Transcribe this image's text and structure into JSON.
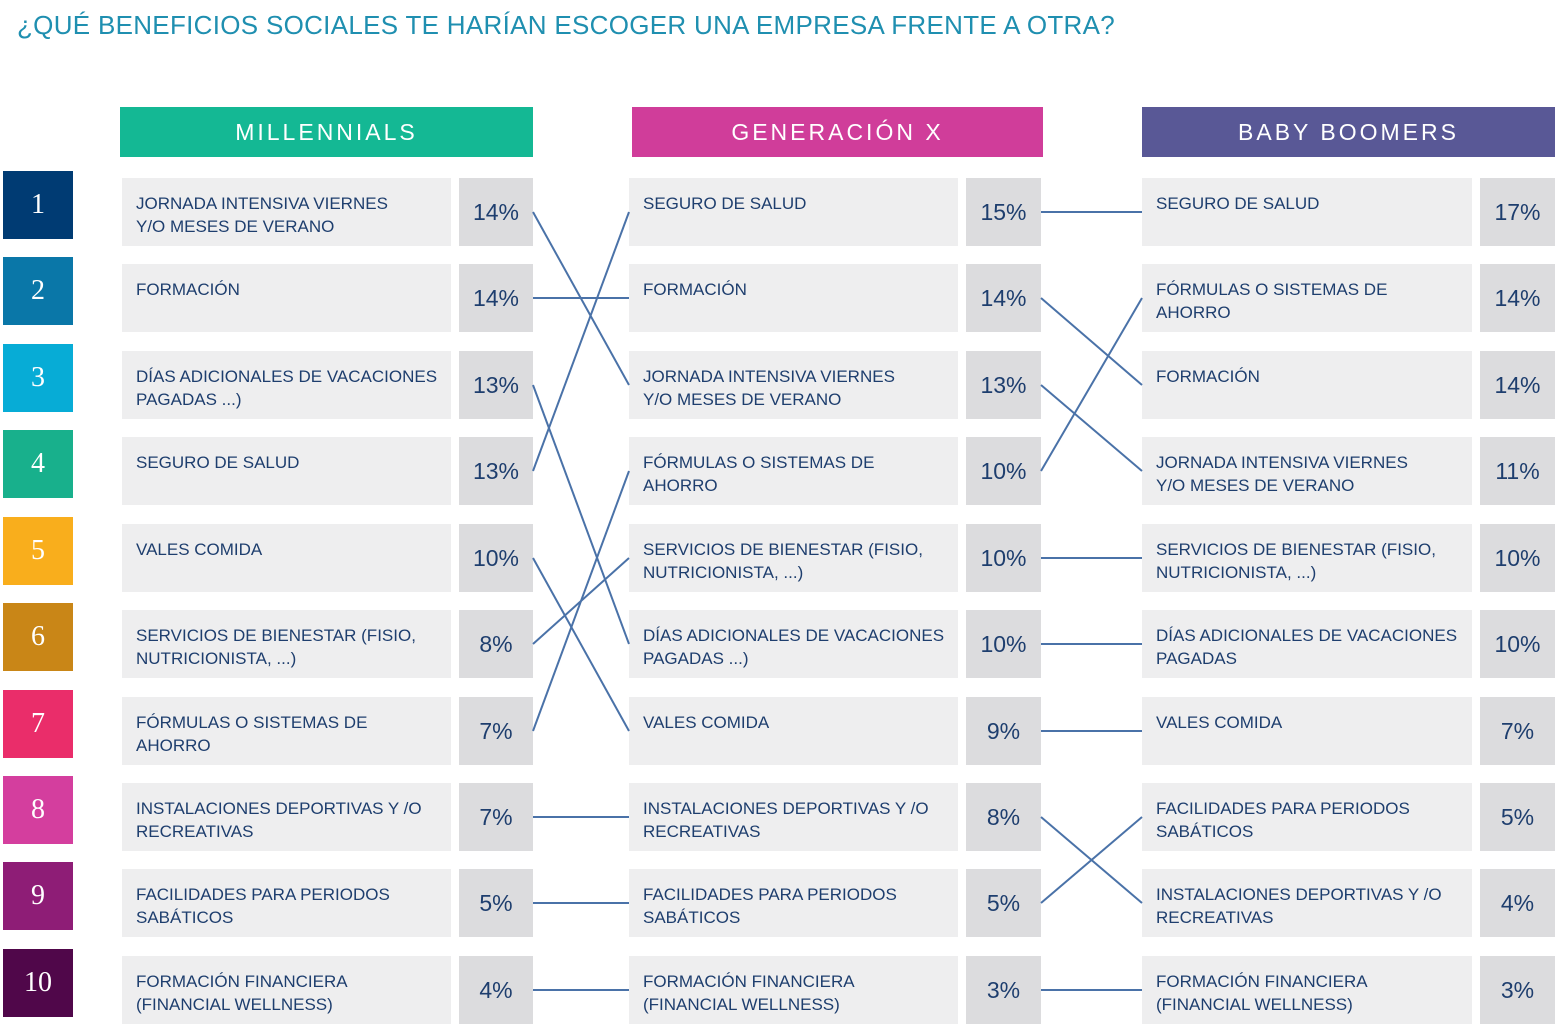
{
  "title": "¿QUÉ BENEFICIOS SOCIALES TE HARÍAN ESCOGER UNA EMPRESA FRENTE A OTRA?",
  "ranks": [
    "1",
    "2",
    "3",
    "4",
    "5",
    "6",
    "7",
    "8",
    "9",
    "10"
  ],
  "rank_colors": [
    "#003b73",
    "#0a77a8",
    "#07acd6",
    "#18b08c",
    "#f9ae1c",
    "#c98617",
    "#ea2d6a",
    "#d43e9e",
    "#8e1d76",
    "#50074a"
  ],
  "line_color": "#4a72a8",
  "chart_data": {
    "type": "table",
    "columns": [
      {
        "name": "MILLENNIALS",
        "color": "#14b894",
        "items": [
          {
            "label": "JORNADA INTENSIVA VIERNES\nY/O MESES DE VERANO",
            "value": "14%"
          },
          {
            "label": "FORMACIÓN",
            "value": "14%"
          },
          {
            "label": "DÍAS ADICIONALES DE VACACIONES\nPAGADAS ...)",
            "value": "13%"
          },
          {
            "label": "SEGURO DE SALUD",
            "value": "13%"
          },
          {
            "label": "VALES COMIDA",
            "value": "10%"
          },
          {
            "label": "SERVICIOS DE BIENESTAR (FISIO,\nNUTRICIONISTA, ...)",
            "value": "8%"
          },
          {
            "label": "FÓRMULAS O SISTEMAS DE\nAHORRO",
            "value": "7%"
          },
          {
            "label": "INSTALACIONES DEPORTIVAS Y /O\nRECREATIVAS",
            "value": "7%"
          },
          {
            "label": "FACILIDADES PARA PERIODOS\nSABÁTICOS",
            "value": "5%"
          },
          {
            "label": "FORMACIÓN FINANCIERA\n(FINANCIAL WELLNESS)",
            "value": "4%"
          }
        ]
      },
      {
        "name": "GENERACIÓN X",
        "color": "#d03d9a",
        "items": [
          {
            "label": "SEGURO DE SALUD",
            "value": "15%"
          },
          {
            "label": "FORMACIÓN",
            "value": "14%"
          },
          {
            "label": "JORNADA INTENSIVA VIERNES\nY/O MESES DE VERANO",
            "value": "13%"
          },
          {
            "label": "FÓRMULAS O SISTEMAS DE\nAHORRO",
            "value": "10%"
          },
          {
            "label": "SERVICIOS DE BIENESTAR (FISIO,\nNUTRICIONISTA, ...)",
            "value": "10%"
          },
          {
            "label": "DÍAS ADICIONALES DE VACACIONES\nPAGADAS ...)",
            "value": "10%"
          },
          {
            "label": "VALES COMIDA",
            "value": "9%"
          },
          {
            "label": "INSTALACIONES DEPORTIVAS Y /O\nRECREATIVAS",
            "value": "8%"
          },
          {
            "label": "FACILIDADES PARA PERIODOS\nSABÁTICOS",
            "value": "5%"
          },
          {
            "label": "FORMACIÓN FINANCIERA\n(FINANCIAL WELLNESS)",
            "value": "3%"
          }
        ]
      },
      {
        "name": "BABY BOOMERS",
        "color": "#595896",
        "items": [
          {
            "label": "SEGURO DE SALUD",
            "value": "17%"
          },
          {
            "label": "FÓRMULAS O SISTEMAS DE\nAHORRO",
            "value": "14%"
          },
          {
            "label": "FORMACIÓN",
            "value": "14%"
          },
          {
            "label": "JORNADA INTENSIVA VIERNES\nY/O MESES DE VERANO",
            "value": "11%"
          },
          {
            "label": "SERVICIOS DE BIENESTAR (FISIO,\nNUTRICIONISTA, ...)",
            "value": "10%"
          },
          {
            "label": "DÍAS ADICIONALES DE VACACIONES\nPAGADAS",
            "value": "10%"
          },
          {
            "label": "VALES COMIDA",
            "value": "7%"
          },
          {
            "label": "FACILIDADES PARA PERIODOS\nSABÁTICOS",
            "value": "5%"
          },
          {
            "label": "INSTALACIONES DEPORTIVAS Y /O\nRECREATIVAS",
            "value": "4%"
          },
          {
            "label": "FORMACIÓN FINANCIERA\n(FINANCIAL WELLNESS)",
            "value": "3%"
          }
        ]
      }
    ],
    "links": [
      [
        [
          0,
          2
        ],
        [
          1,
          1
        ],
        [
          2,
          5
        ],
        [
          3,
          0
        ],
        [
          4,
          6
        ],
        [
          5,
          4
        ],
        [
          6,
          3
        ],
        [
          7,
          7
        ],
        [
          8,
          8
        ],
        [
          9,
          9
        ]
      ],
      [
        [
          0,
          0
        ],
        [
          1,
          2
        ],
        [
          2,
          3
        ],
        [
          3,
          1
        ],
        [
          4,
          4
        ],
        [
          5,
          5
        ],
        [
          6,
          6
        ],
        [
          7,
          8
        ],
        [
          8,
          7
        ],
        [
          9,
          9
        ]
      ]
    ]
  }
}
